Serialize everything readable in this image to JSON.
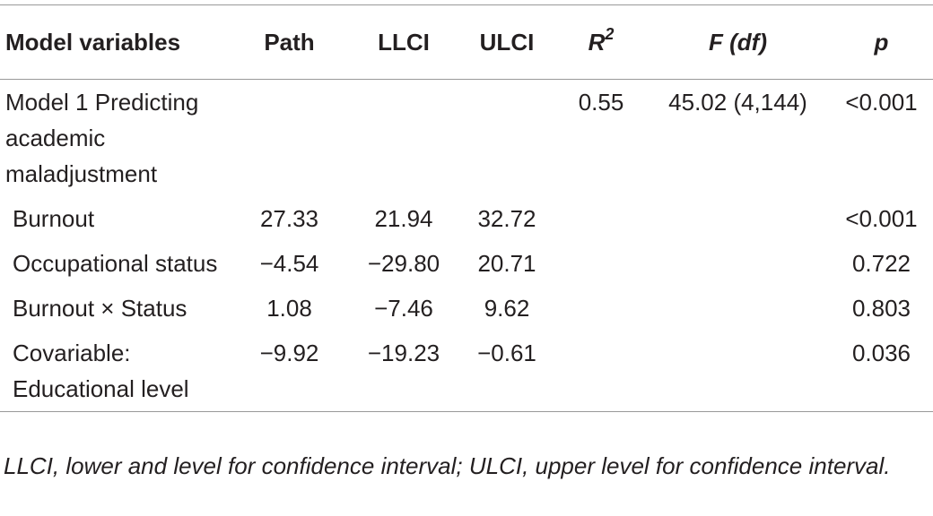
{
  "table": {
    "header": [
      "Model variables",
      "Path",
      "LLCI",
      "ULCI",
      {
        "text": "R",
        "sup": "2"
      },
      "F (df)",
      "p"
    ],
    "rows": [
      [
        "Model 1 Predicting academic maladjustment",
        null,
        null,
        null,
        "0.55",
        "45.02 (4,144)",
        "<0.001"
      ],
      [
        "Burnout",
        "27.33",
        "21.94",
        "32.72",
        null,
        null,
        "<0.001"
      ],
      [
        "Occupational status",
        "−4.54",
        "−29.80",
        "20.71",
        null,
        null,
        "0.722"
      ],
      [
        "Burnout × Status",
        "1.08",
        "−7.46",
        "9.62",
        null,
        null,
        "0.803"
      ],
      [
        "Covariable: Educational level",
        "−9.92",
        "−19.23",
        "−0.61",
        null,
        null,
        "0.036"
      ]
    ],
    "footnote": "LLCI, lower and level for confidence interval; ULCI, upper level for confidence interval."
  }
}
